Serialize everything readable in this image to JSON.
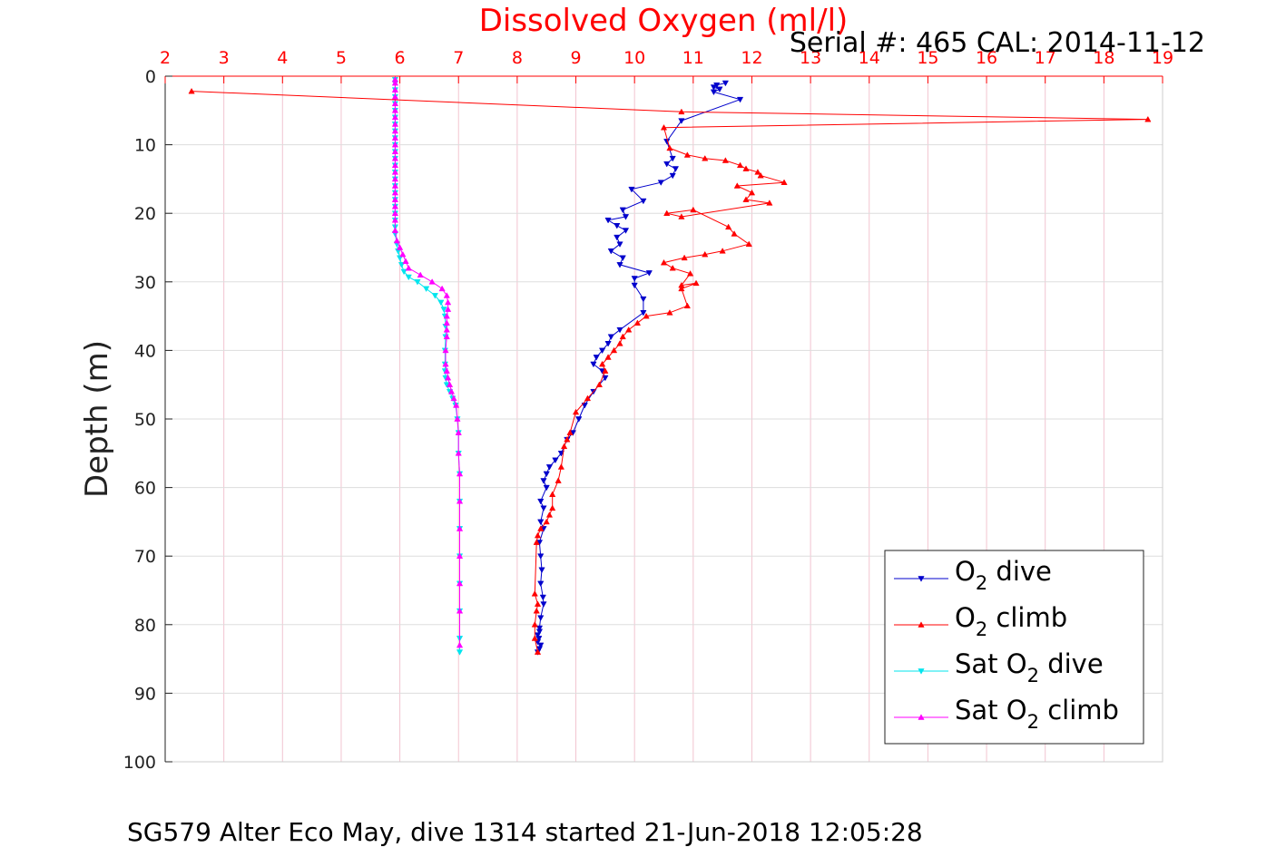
{
  "chart_data": {
    "type": "line",
    "title": "Dissolved Oxygen (ml/l)",
    "serial_text": "Serial #: 465  CAL: 2014-11-12",
    "caption": "SG579 Alter Eco May, dive 1314 started 21-Jun-2018 12:05:28",
    "xlabel": "Dissolved Oxygen (ml/l)",
    "ylabel": "Depth (m)",
    "xlim": [
      2,
      19
    ],
    "ylim": [
      0,
      100
    ],
    "y_reversed": true,
    "x_axis_position": "top",
    "x_ticks": [
      2,
      3,
      4,
      5,
      6,
      7,
      8,
      9,
      10,
      11,
      12,
      13,
      14,
      15,
      16,
      17,
      18,
      19
    ],
    "y_ticks": [
      0,
      10,
      20,
      30,
      40,
      50,
      60,
      70,
      80,
      90,
      100
    ],
    "grid": true,
    "legend_position": "bottom-right",
    "series": [
      {
        "name": "O2 dive",
        "legend": {
          "prefix": "O",
          "sub": "2",
          "suffix": " dive"
        },
        "color": "#0000cc",
        "marker": "triangle-down",
        "x": [
          11.55,
          11.4,
          11.35,
          11.45,
          11.35,
          11.8,
          10.8,
          10.55,
          10.65,
          10.55,
          10.7,
          10.65,
          10.45,
          9.95,
          10.15,
          9.8,
          9.85,
          9.55,
          9.7,
          9.85,
          9.7,
          9.75,
          9.6,
          9.8,
          9.75,
          10.25,
          10.0,
          10.0,
          10.15,
          10.15,
          9.75,
          9.6,
          9.55,
          9.45,
          9.35,
          9.3,
          9.45,
          9.5,
          9.3,
          9.15,
          9.05,
          8.95,
          8.85,
          8.75,
          8.65,
          8.55,
          8.5,
          8.45,
          8.5,
          8.4,
          8.45,
          8.4,
          8.45,
          8.38,
          8.4,
          8.42,
          8.4,
          8.44,
          8.45,
          8.4,
          8.38,
          8.38,
          8.35,
          8.37,
          8.35,
          8.4,
          8.38,
          8.35
        ],
        "y": [
          1.0,
          1.3,
          1.6,
          1.9,
          2.3,
          3.4,
          6.5,
          9.5,
          12.0,
          12.8,
          13.5,
          14.5,
          15.5,
          16.5,
          18.2,
          19.5,
          20.5,
          21.0,
          21.8,
          22.5,
          23.5,
          24.5,
          25.5,
          26.5,
          27.5,
          28.7,
          29.5,
          30.5,
          32.5,
          34.5,
          37.0,
          38.0,
          39.0,
          40.0,
          41.0,
          42.0,
          43.0,
          44.0,
          46.0,
          48.0,
          50.0,
          52.0,
          53.0,
          55.0,
          56.0,
          57.0,
          58.0,
          59.0,
          60.0,
          62.0,
          63.0,
          65.0,
          66.0,
          68.0,
          70.0,
          72.0,
          74.0,
          76.0,
          77.0,
          79.0,
          80.5,
          81.0,
          81.5,
          82.0,
          82.5,
          83.0,
          83.5,
          84.0
        ]
      },
      {
        "name": "O2 climb",
        "legend": {
          "prefix": "O",
          "sub": "2",
          "suffix": " climb"
        },
        "color": "#ff0000",
        "marker": "triangle-up",
        "x": [
          2.45,
          10.8,
          18.75,
          10.5,
          10.6,
          10.9,
          11.2,
          11.55,
          11.8,
          11.9,
          12.1,
          12.15,
          12.55,
          11.75,
          12.0,
          11.9,
          12.3,
          10.8,
          10.55,
          11.0,
          11.6,
          11.7,
          11.95,
          11.5,
          11.2,
          10.85,
          10.5,
          10.65,
          10.95,
          10.8,
          11.05,
          10.8,
          10.9,
          10.6,
          10.2,
          10.05,
          9.9,
          9.8,
          9.75,
          9.65,
          9.55,
          9.45,
          9.5,
          9.4,
          9.2,
          9.0,
          8.9,
          8.85,
          8.8,
          8.75,
          8.7,
          8.6,
          8.6,
          8.55,
          8.5,
          8.4,
          8.35,
          8.33,
          8.3,
          8.35,
          8.33,
          8.3,
          8.3,
          8.35
        ],
        "y": [
          2.2,
          5.2,
          6.3,
          7.5,
          10.5,
          11.5,
          12.0,
          12.3,
          13.0,
          13.5,
          14.0,
          14.5,
          15.5,
          16.0,
          17.0,
          18.0,
          18.5,
          20.5,
          20.0,
          19.5,
          22.0,
          23.0,
          24.5,
          25.5,
          26.0,
          26.5,
          27.2,
          28.0,
          28.8,
          30.5,
          30.2,
          31.0,
          33.5,
          34.5,
          35.0,
          36.0,
          37.0,
          38.0,
          39.0,
          40.0,
          41.0,
          42.0,
          43.0,
          45.0,
          47.0,
          49.0,
          52.0,
          53.0,
          54.0,
          57.0,
          59.0,
          61.0,
          63.0,
          64.0,
          65.0,
          66.0,
          67.0,
          68.0,
          75.5,
          77.0,
          78.0,
          80.0,
          82.0,
          84.0
        ]
      },
      {
        "name": "Sat O2 dive",
        "legend": {
          "prefix": "Sat O",
          "sub": "2",
          "suffix": " dive"
        },
        "color": "#00e5ee",
        "marker": "triangle-down",
        "x": [
          5.92,
          5.92,
          5.92,
          5.92,
          5.92,
          5.92,
          5.92,
          5.92,
          5.92,
          5.92,
          5.92,
          5.92,
          5.92,
          5.92,
          5.92,
          5.92,
          5.92,
          5.92,
          5.92,
          5.92,
          5.92,
          5.92,
          5.92,
          5.92,
          5.95,
          5.97,
          6.0,
          6.03,
          6.07,
          6.15,
          6.3,
          6.45,
          6.6,
          6.7,
          6.75,
          6.77,
          6.78,
          6.78,
          6.77,
          6.77,
          6.77,
          6.78,
          6.8,
          6.85,
          6.9,
          6.95,
          6.98,
          7.0,
          7.0,
          7.02,
          7.02,
          7.02,
          7.02,
          7.02,
          7.02,
          7.02,
          7.02
        ],
        "y": [
          0.5,
          1.0,
          2.0,
          3.0,
          4.0,
          5.0,
          6.0,
          7.0,
          8.0,
          9.0,
          10.0,
          11.0,
          12.0,
          13.0,
          14.0,
          15.0,
          16.0,
          17.0,
          18.0,
          19.0,
          20.0,
          21.0,
          22.0,
          23.0,
          24.5,
          25.5,
          26.5,
          27.5,
          28.5,
          29.3,
          30.0,
          31.0,
          32.0,
          33.0,
          34.0,
          35.0,
          36.5,
          38.0,
          40.0,
          42.0,
          43.0,
          44.0,
          45.0,
          46.0,
          47.0,
          48.0,
          50.0,
          52.0,
          55.0,
          58.0,
          62.0,
          66.0,
          70.0,
          74.0,
          78.0,
          82.0,
          84.0
        ]
      },
      {
        "name": "Sat O2 climb",
        "legend": {
          "prefix": "Sat O",
          "sub": "2",
          "suffix": " climb"
        },
        "color": "#ff00ff",
        "marker": "triangle-up",
        "x": [
          5.92,
          5.92,
          5.92,
          5.92,
          5.92,
          5.92,
          5.92,
          5.92,
          5.92,
          5.92,
          5.92,
          5.92,
          5.92,
          5.92,
          5.92,
          5.92,
          5.92,
          5.92,
          5.92,
          5.92,
          5.92,
          5.92,
          5.92,
          5.95,
          6.0,
          6.05,
          6.1,
          6.15,
          6.35,
          6.55,
          6.72,
          6.8,
          6.82,
          6.82,
          6.8,
          6.8,
          6.8,
          6.8,
          6.78,
          6.78,
          6.8,
          6.82,
          6.85,
          6.88,
          6.92,
          6.96,
          6.98,
          7.0,
          7.0,
          7.02,
          7.02,
          7.02,
          7.02,
          7.02,
          7.02,
          7.02
        ],
        "y": [
          0.5,
          1.0,
          2.0,
          3.0,
          4.0,
          5.0,
          6.0,
          7.0,
          8.0,
          9.0,
          10.0,
          11.0,
          12.0,
          13.0,
          14.0,
          15.0,
          16.0,
          17.0,
          18.0,
          19.0,
          20.0,
          21.0,
          22.5,
          24.0,
          25.0,
          26.0,
          27.0,
          28.0,
          29.0,
          30.0,
          31.0,
          32.0,
          33.0,
          34.0,
          35.0,
          36.0,
          37.0,
          38.0,
          40.0,
          42.0,
          43.0,
          44.0,
          45.0,
          46.0,
          47.0,
          48.0,
          50.0,
          52.0,
          55.0,
          58.0,
          62.0,
          66.0,
          70.0,
          74.0,
          78.0,
          83.0
        ]
      }
    ]
  }
}
